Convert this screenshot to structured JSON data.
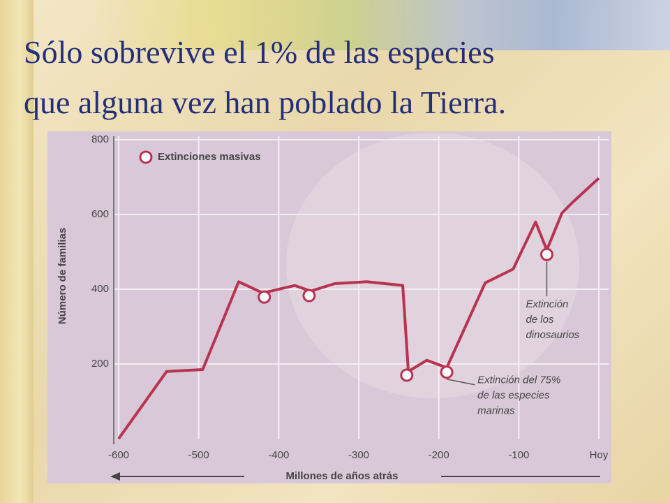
{
  "slide_title": [
    "Sólo sobrevive el 1% de las especies",
    "que alguna vez han poblado la Tierra."
  ],
  "chart_data": {
    "type": "line",
    "y_label": "Número de familias",
    "x_label": "Millones de años atrás",
    "x": [
      -600,
      -540,
      -495,
      -450,
      -420,
      -380,
      -360,
      -330,
      -290,
      -245,
      -238,
      -215,
      -190,
      -142,
      -107,
      -79,
      -65,
      -46,
      -33,
      0
    ],
    "values": [
      0,
      180,
      185,
      420,
      390,
      410,
      395,
      415,
      420,
      410,
      180,
      210,
      190,
      417,
      454,
      580,
      505,
      604,
      632,
      697
    ],
    "color": "#b8334f",
    "extinctions": {
      "name": "Extinciones masivas",
      "x": [
        -418,
        -362,
        -240,
        -190,
        -65
      ],
      "values": [
        379,
        383,
        170,
        178,
        493
      ]
    },
    "annotations": [
      {
        "lines": [
          "Extinción",
          "de los",
          "dinosaurios"
        ],
        "point": 4
      },
      {
        "lines": [
          "Extinción del 75%",
          "de las especies",
          "marinas"
        ],
        "point": 3
      }
    ],
    "xlim": [
      -600,
      0
    ],
    "ylim": [
      0,
      800
    ],
    "xticks": [
      -600,
      -500,
      -400,
      -300,
      -200,
      -100,
      {
        "value": 0,
        "label": "Hoy"
      }
    ],
    "yticks": [
      200,
      400,
      600,
      800
    ],
    "grid": true
  }
}
